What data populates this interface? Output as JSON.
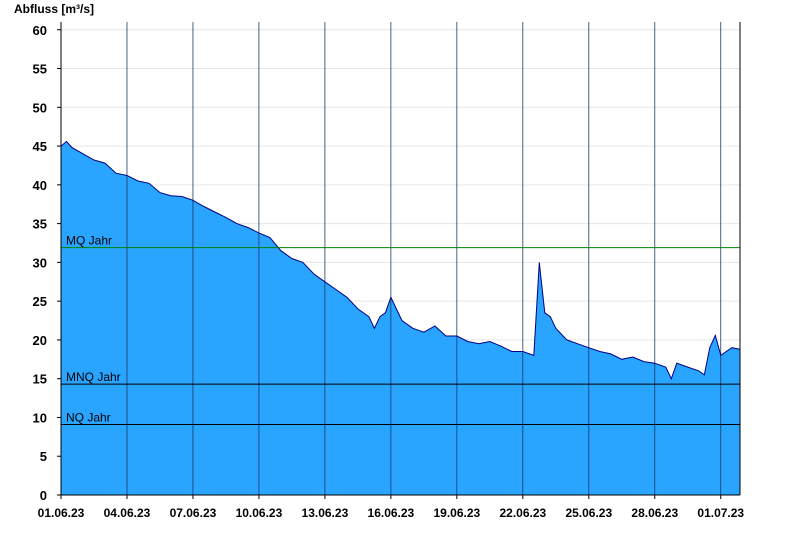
{
  "chart_data": {
    "type": "area",
    "title": "",
    "ylabel": "Abfluss [m³/s]",
    "xlabel": "",
    "ylim": [
      0,
      61
    ],
    "yticks": [
      0,
      5,
      10,
      15,
      20,
      25,
      30,
      35,
      40,
      45,
      50,
      55,
      60
    ],
    "xlim": [
      "2023-06-01T00:00",
      "2023-07-01T21:00"
    ],
    "xticks": [
      "01.06.23",
      "04.06.23",
      "07.06.23",
      "10.06.23",
      "13.06.23",
      "16.06.23",
      "19.06.23",
      "22.06.23",
      "25.06.23",
      "28.06.23",
      "01.07.23"
    ],
    "grid": "horizontal light gray + vertical dark lines at x ticks",
    "fill_color": "#29a4ff",
    "line_color": "#000080",
    "series": [
      {
        "x": [
          "2023-06-01T00:00",
          "2023-06-01T06:00",
          "2023-06-01T12:00",
          "2023-06-02T00:00",
          "2023-06-02T12:00",
          "2023-06-03T00:00",
          "2023-06-03T12:00",
          "2023-06-04T00:00",
          "2023-06-04T12:00",
          "2023-06-05T00:00",
          "2023-06-05T12:00",
          "2023-06-06T00:00",
          "2023-06-06T12:00",
          "2023-06-07T00:00",
          "2023-06-07T12:00",
          "2023-06-08T00:00",
          "2023-06-08T12:00",
          "2023-06-09T00:00",
          "2023-06-09T12:00",
          "2023-06-10T00:00",
          "2023-06-10T12:00",
          "2023-06-11T00:00",
          "2023-06-11T12:00",
          "2023-06-12T00:00",
          "2023-06-12T12:00",
          "2023-06-13T00:00",
          "2023-06-13T12:00",
          "2023-06-14T00:00",
          "2023-06-14T12:00",
          "2023-06-15T00:00",
          "2023-06-15T06:00",
          "2023-06-15T12:00",
          "2023-06-15T18:00",
          "2023-06-16T00:00",
          "2023-06-16T12:00",
          "2023-06-17T00:00",
          "2023-06-17T12:00",
          "2023-06-18T00:00",
          "2023-06-18T12:00",
          "2023-06-19T00:00",
          "2023-06-19T12:00",
          "2023-06-20T00:00",
          "2023-06-20T12:00",
          "2023-06-21T00:00",
          "2023-06-21T12:00",
          "2023-06-22T00:00",
          "2023-06-22T12:00",
          "2023-06-22T18:00",
          "2023-06-23T00:00",
          "2023-06-23T06:00",
          "2023-06-23T12:00",
          "2023-06-24T00:00",
          "2023-06-24T12:00",
          "2023-06-25T00:00",
          "2023-06-25T12:00",
          "2023-06-26T00:00",
          "2023-06-26T12:00",
          "2023-06-27T00:00",
          "2023-06-27T12:00",
          "2023-06-28T00:00",
          "2023-06-28T12:00",
          "2023-06-28T18:00",
          "2023-06-29T00:00",
          "2023-06-29T12:00",
          "2023-06-30T00:00",
          "2023-06-30T06:00",
          "2023-06-30T12:00",
          "2023-06-30T18:00",
          "2023-07-01T00:00",
          "2023-07-01T06:00",
          "2023-07-01T12:00",
          "2023-07-01T21:00"
        ],
        "values": [
          45.0,
          45.6,
          44.8,
          44.0,
          43.2,
          42.8,
          41.5,
          41.2,
          40.5,
          40.2,
          39.0,
          38.6,
          38.5,
          38.0,
          37.2,
          36.5,
          35.8,
          35.0,
          34.5,
          33.8,
          33.2,
          31.5,
          30.5,
          30.0,
          28.5,
          27.5,
          26.5,
          25.5,
          24.0,
          23.0,
          21.5,
          23.0,
          23.5,
          25.5,
          22.5,
          21.5,
          21.0,
          21.8,
          20.5,
          20.5,
          19.8,
          19.5,
          19.8,
          19.2,
          18.5,
          18.5,
          18.0,
          30.0,
          23.5,
          23.0,
          21.5,
          20.0,
          19.5,
          19.0,
          18.5,
          18.2,
          17.5,
          17.8,
          17.2,
          17.0,
          16.5,
          15.0,
          17.0,
          16.5,
          16.0,
          15.5,
          19.0,
          20.6,
          18.0,
          18.5,
          19.0,
          18.8
        ]
      }
    ],
    "reference_lines": [
      {
        "label": "MQ Jahr",
        "value": 31.9,
        "color": "#008000"
      },
      {
        "label": "MNQ Jahr",
        "value": 14.3,
        "color": "#000000"
      },
      {
        "label": "NQ Jahr",
        "value": 9.1,
        "color": "#000000"
      }
    ]
  }
}
